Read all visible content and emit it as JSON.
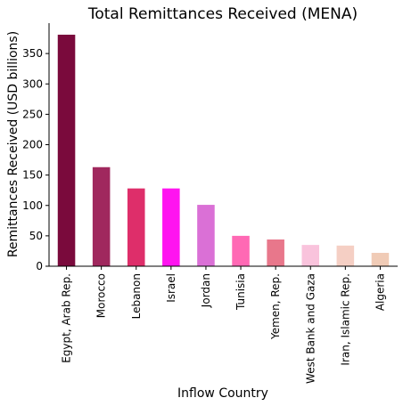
{
  "chart_data": {
    "type": "bar",
    "title": "Total Remittances Received (MENA)",
    "xlabel": "Inflow Country",
    "ylabel": "Remittances Received (USD billions)",
    "categories": [
      "Egypt, Arab Rep.",
      "Morocco",
      "Lebanon",
      "Israel",
      "Jordan",
      "Tunisia",
      "Yemen, Rep.",
      "West Bank and Gaza",
      "Iran, Islamic Rep.",
      "Algeria"
    ],
    "values": [
      381,
      163,
      128,
      128,
      101,
      50,
      44,
      35,
      34,
      22
    ],
    "colors": [
      "#7a0a3c",
      "#a0285e",
      "#de2e6a",
      "#ff14f0",
      "#da70d6",
      "#ff69b4",
      "#e8778b",
      "#f9c3dc",
      "#f5cfc4",
      "#f0cbb6"
    ],
    "yticks": [
      0,
      50,
      100,
      150,
      200,
      250,
      300,
      350
    ],
    "ylim": [
      0,
      400
    ],
    "grid": false,
    "legend": "none"
  }
}
